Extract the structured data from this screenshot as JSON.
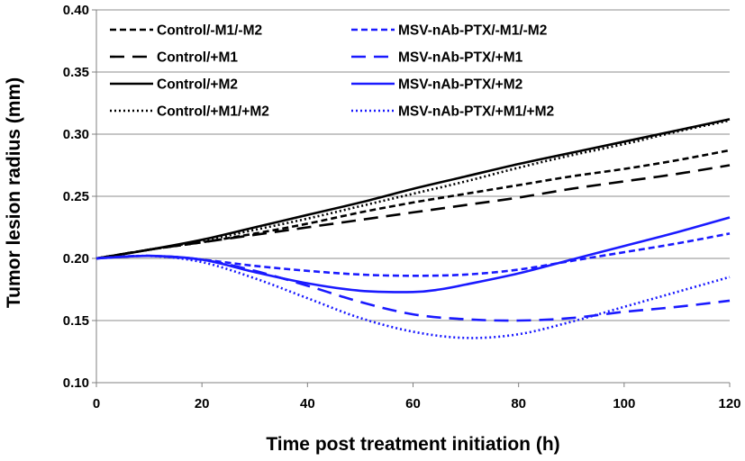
{
  "chart_data": {
    "type": "line",
    "title": "",
    "xlabel": "Time post treatment initiation (h)",
    "ylabel": "Tumor  lesion radius (mm)",
    "xlim": [
      0,
      120
    ],
    "ylim": [
      0.1,
      0.4
    ],
    "xticks": [
      0,
      20,
      40,
      60,
      80,
      100,
      120
    ],
    "yticks": [
      0.1,
      0.15,
      0.2,
      0.25,
      0.3,
      0.35,
      0.4
    ],
    "xtick_labels": [
      "0",
      "20",
      "40",
      "60",
      "80",
      "100",
      "120"
    ],
    "ytick_labels": [
      "0.10",
      "0.15",
      "0.20",
      "0.25",
      "0.30",
      "0.35",
      "0.40"
    ],
    "grid": "horizontal",
    "legend_position": "top",
    "series": [
      {
        "name": "Control/-M1/-M2",
        "color": "#000000",
        "dash": "dashed",
        "x": [
          0,
          10,
          20,
          30,
          40,
          50,
          60,
          70,
          80,
          90,
          100,
          110,
          120
        ],
        "y": [
          0.2,
          0.207,
          0.213,
          0.22,
          0.228,
          0.237,
          0.245,
          0.252,
          0.259,
          0.266,
          0.272,
          0.279,
          0.287
        ]
      },
      {
        "name": "Control/+M1",
        "color": "#000000",
        "dash": "longdash",
        "x": [
          0,
          10,
          20,
          30,
          40,
          50,
          60,
          70,
          80,
          90,
          100,
          110,
          120
        ],
        "y": [
          0.2,
          0.207,
          0.213,
          0.219,
          0.225,
          0.231,
          0.237,
          0.243,
          0.249,
          0.256,
          0.262,
          0.268,
          0.275
        ]
      },
      {
        "name": "Control/+M2",
        "color": "#000000",
        "dash": "solid",
        "x": [
          0,
          10,
          20,
          30,
          40,
          50,
          60,
          70,
          80,
          90,
          100,
          110,
          120
        ],
        "y": [
          0.2,
          0.207,
          0.215,
          0.225,
          0.235,
          0.245,
          0.256,
          0.266,
          0.276,
          0.285,
          0.294,
          0.303,
          0.312
        ]
      },
      {
        "name": "Control/+M1/+M2",
        "color": "#000000",
        "dash": "dotted",
        "x": [
          0,
          10,
          20,
          30,
          40,
          50,
          60,
          70,
          80,
          90,
          100,
          110,
          120
        ],
        "y": [
          0.2,
          0.207,
          0.214,
          0.223,
          0.232,
          0.242,
          0.252,
          0.262,
          0.273,
          0.283,
          0.292,
          0.302,
          0.311
        ]
      },
      {
        "name": "MSV-nAb-PTX/-M1/-M2",
        "color": "#1a1aff",
        "dash": "dashed",
        "x": [
          0,
          10,
          20,
          30,
          40,
          50,
          60,
          70,
          80,
          90,
          100,
          110,
          120
        ],
        "y": [
          0.2,
          0.202,
          0.199,
          0.194,
          0.19,
          0.187,
          0.186,
          0.187,
          0.191,
          0.198,
          0.205,
          0.212,
          0.22
        ]
      },
      {
        "name": "MSV-nAb-PTX/+M1",
        "color": "#1a1aff",
        "dash": "longdash",
        "x": [
          0,
          10,
          20,
          30,
          40,
          50,
          60,
          70,
          80,
          90,
          100,
          110,
          120
        ],
        "y": [
          0.2,
          0.202,
          0.199,
          0.19,
          0.178,
          0.165,
          0.155,
          0.151,
          0.15,
          0.152,
          0.157,
          0.161,
          0.166
        ]
      },
      {
        "name": "MSV-nAb-PTX/+M2",
        "color": "#1a1aff",
        "dash": "solid",
        "x": [
          0,
          10,
          20,
          30,
          40,
          50,
          60,
          65,
          70,
          80,
          90,
          100,
          110,
          120
        ],
        "y": [
          0.2,
          0.202,
          0.199,
          0.189,
          0.18,
          0.174,
          0.173,
          0.175,
          0.179,
          0.188,
          0.199,
          0.21,
          0.221,
          0.233
        ]
      },
      {
        "name": "MSV-nAb-PTX/+M1/+M2",
        "color": "#1a1aff",
        "dash": "dotted",
        "x": [
          0,
          10,
          20,
          30,
          40,
          50,
          60,
          70,
          80,
          90,
          100,
          110,
          120
        ],
        "y": [
          0.2,
          0.202,
          0.197,
          0.184,
          0.168,
          0.152,
          0.141,
          0.136,
          0.139,
          0.149,
          0.161,
          0.173,
          0.185
        ]
      }
    ]
  }
}
